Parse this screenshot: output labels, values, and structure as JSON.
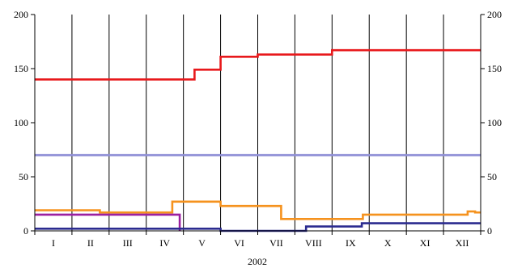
{
  "chart_data": {
    "type": "line",
    "step": true,
    "xlabel": "2002",
    "ylabel": "",
    "ylim": [
      0,
      200
    ],
    "yticks": [
      0,
      50,
      100,
      150,
      200
    ],
    "y_axis_labels": "left-and-right",
    "grid": "vertical",
    "legend": "none",
    "categories": [
      "I",
      "II",
      "III",
      "IV",
      "V",
      "VI",
      "VII",
      "VIII",
      "IX",
      "X",
      "XI",
      "XII"
    ],
    "x_range_months": [
      0,
      12
    ],
    "series": [
      {
        "color": "#e8191c",
        "x": [
          0,
          4.3,
          5.0,
          6.0,
          8.0,
          12
        ],
        "y": [
          140,
          149,
          161,
          163,
          167,
          167
        ]
      },
      {
        "color": "#8f8fd6",
        "x": [
          0,
          12
        ],
        "y": [
          70,
          70
        ]
      },
      {
        "color": "#f5921e",
        "x": [
          0,
          1.75,
          3.7,
          5.0,
          6.63,
          8.83,
          11.65,
          11.85,
          12
        ],
        "y": [
          19,
          17,
          27,
          23,
          11,
          15,
          18,
          17,
          17
        ]
      },
      {
        "color": "#9b1fa0",
        "x": [
          0,
          3.9
        ],
        "y": [
          15,
          0
        ]
      },
      {
        "color": "#2b2b8f",
        "x": [
          0,
          5.0,
          7.3,
          8.8,
          12
        ],
        "y": [
          2,
          0,
          4,
          7,
          7
        ]
      }
    ]
  }
}
